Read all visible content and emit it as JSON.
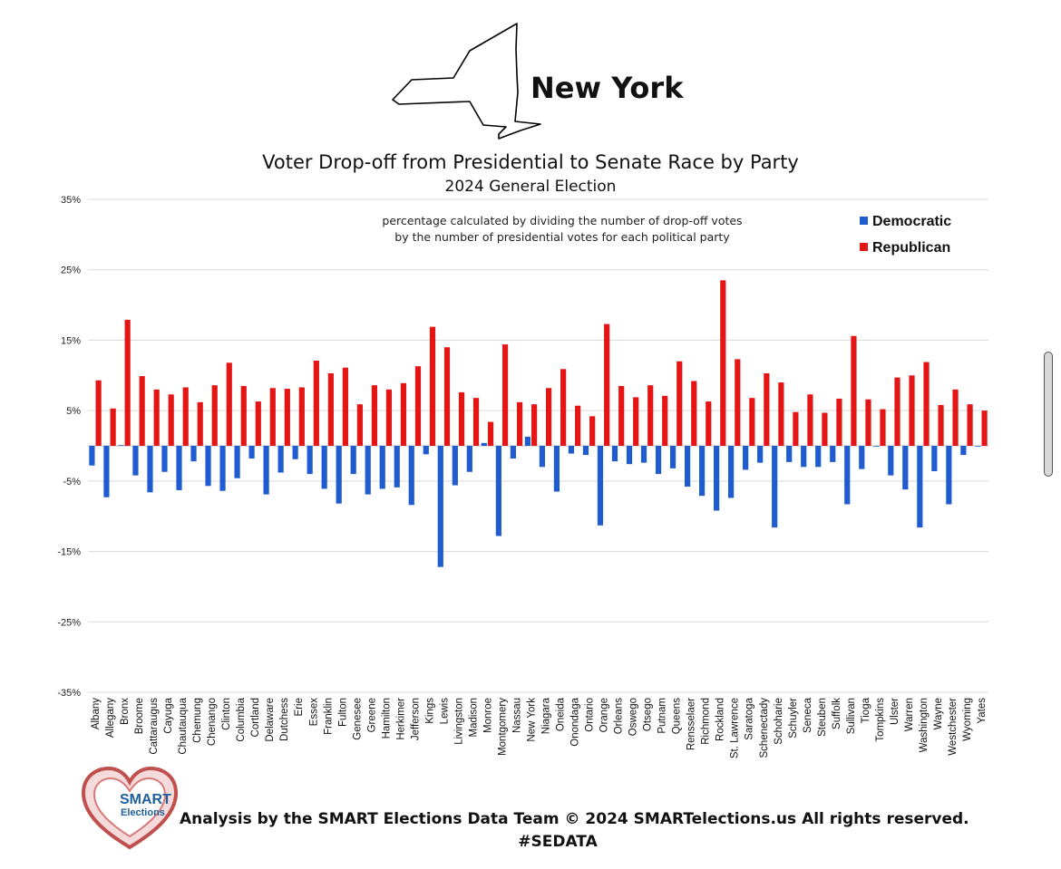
{
  "header": {
    "state_name": "New York"
  },
  "chart_data": {
    "type": "bar",
    "title": "Voter Drop-off from Presidential to Senate Race by Party",
    "subtitle": "2024 General Election",
    "note_line1": "percentage calculated by dividing the number of drop-off votes",
    "note_line2": "by the number of presidential votes for each political party",
    "y_axis": {
      "min": -35,
      "max": 35,
      "ticks": [
        35,
        25,
        15,
        5,
        -5,
        -15,
        -25,
        -35
      ],
      "tick_labels": [
        "35%",
        "25%",
        "15%",
        "5%",
        "-5%",
        "-15%",
        "-25%",
        "-35%"
      ]
    },
    "categories": [
      "Albany",
      "Allegany",
      "Bronx",
      "Broome",
      "Cattaraugus",
      "Cayuga",
      "Chautauqua",
      "Chemung",
      "Chenango",
      "Clinton",
      "Columbia",
      "Cortland",
      "Delaware",
      "Dutchess",
      "Erie",
      "Essex",
      "Franklin",
      "Fulton",
      "Genesee",
      "Greene",
      "Hamilton",
      "Herkimer",
      "Jefferson",
      "Kings",
      "Lewis",
      "Livingston",
      "Madison",
      "Monroe",
      "Montgomery",
      "Nassau",
      "New York",
      "Niagara",
      "Oneida",
      "Onondaga",
      "Ontario",
      "Orange",
      "Orleans",
      "Oswego",
      "Otsego",
      "Putnam",
      "Queens",
      "Rensselaer",
      "Richmond",
      "Rockland",
      "St. Lawrence",
      "Saratoga",
      "Schenectady",
      "Schoharie",
      "Schuyler",
      "Seneca",
      "Steuben",
      "Suffolk",
      "Sullivan",
      "Tioga",
      "Tompkins",
      "Ulster",
      "Warren",
      "Washington",
      "Wayne",
      "Westchester",
      "Wyoming",
      "Yates"
    ],
    "series": [
      {
        "name": "Democratic",
        "color": "#1f5bd1",
        "values": [
          -2.8,
          -7.3,
          0.1,
          -4.2,
          -6.6,
          -3.7,
          -6.3,
          -2.2,
          -5.7,
          -6.4,
          -4.6,
          -1.8,
          -6.9,
          -3.8,
          -1.9,
          -4.0,
          -6.1,
          -8.2,
          -4.0,
          -6.9,
          -6.1,
          -5.9,
          -8.4,
          -1.2,
          -17.2,
          -5.6,
          -3.7,
          0.4,
          -12.8,
          -1.8,
          1.3,
          -3.0,
          -6.5,
          -1.1,
          -1.3,
          -11.3,
          -2.2,
          -2.6,
          -2.4,
          -4.0,
          -3.2,
          -5.8,
          -7.1,
          -9.2,
          -7.4,
          -3.4,
          -2.4,
          -11.6,
          -2.3,
          -3.0,
          -3.0,
          -2.3,
          -8.3,
          -3.3,
          -0.1,
          -4.2,
          -6.2,
          -11.6,
          -3.6,
          -8.3,
          -1.3,
          0.0
        ]
      },
      {
        "name": "Republican",
        "color": "#e31515",
        "values": [
          9.3,
          5.3,
          17.9,
          9.9,
          8.0,
          7.3,
          8.3,
          6.2,
          8.6,
          11.8,
          8.5,
          6.3,
          8.2,
          8.1,
          8.3,
          12.1,
          10.3,
          11.1,
          5.9,
          8.6,
          8.0,
          8.9,
          11.3,
          16.9,
          14.0,
          7.6,
          6.8,
          3.4,
          14.4,
          6.2,
          5.9,
          8.2,
          10.9,
          5.7,
          4.2,
          17.3,
          8.5,
          6.9,
          8.6,
          7.1,
          12.0,
          9.2,
          6.3,
          23.5,
          12.3,
          6.8,
          10.3,
          9.0,
          4.8,
          7.3,
          4.7,
          6.7,
          15.6,
          6.6,
          5.2,
          9.7,
          10.0,
          11.9,
          5.8,
          8.0,
          5.9,
          5.0
        ]
      }
    ],
    "legend_position": "top-right",
    "grid": true
  },
  "footer": {
    "logo_text_1": "SMART",
    "logo_text_2": "Elections",
    "credit": "Analysis by the SMART Elections Data Team © 2024 SMARTelections.us All rights reserved.",
    "hashtag": "#SEDATA"
  }
}
